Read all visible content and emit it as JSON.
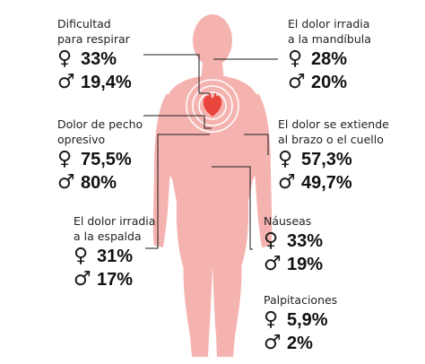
{
  "symbols": {
    "female": "♀",
    "male": "♂"
  },
  "colors": {
    "body": "#f5b3b0",
    "heart": "#e8453c",
    "ring": "#ffffff",
    "line": "#1a1a1a",
    "text": "#111111"
  },
  "symptoms": {
    "dificultad": {
      "label_1": "Dificultad",
      "label_2": "para respirar",
      "female": "33%",
      "male": "19,4%"
    },
    "mandibula": {
      "label_1": "El dolor irradia",
      "label_2": "a la mandíbula",
      "female": "28%",
      "male": "20%"
    },
    "pecho": {
      "label_1": "Dolor de pecho",
      "label_2": "opresivo",
      "female": "75,5%",
      "male": "80%"
    },
    "brazo": {
      "label_1": "El dolor se extiende",
      "label_2": "al brazo o el cuello",
      "female": "57,3%",
      "male": "49,7%"
    },
    "espalda": {
      "label_1": "El dolor irradia",
      "label_2": "a la espalda",
      "female": "31%",
      "male": "17%"
    },
    "nauseas": {
      "label_1": "Náuseas",
      "female": "33%",
      "male": "19%"
    },
    "palpitaciones": {
      "label_1": "Palpitaciones",
      "female": "5,9%",
      "male": "2%"
    }
  }
}
